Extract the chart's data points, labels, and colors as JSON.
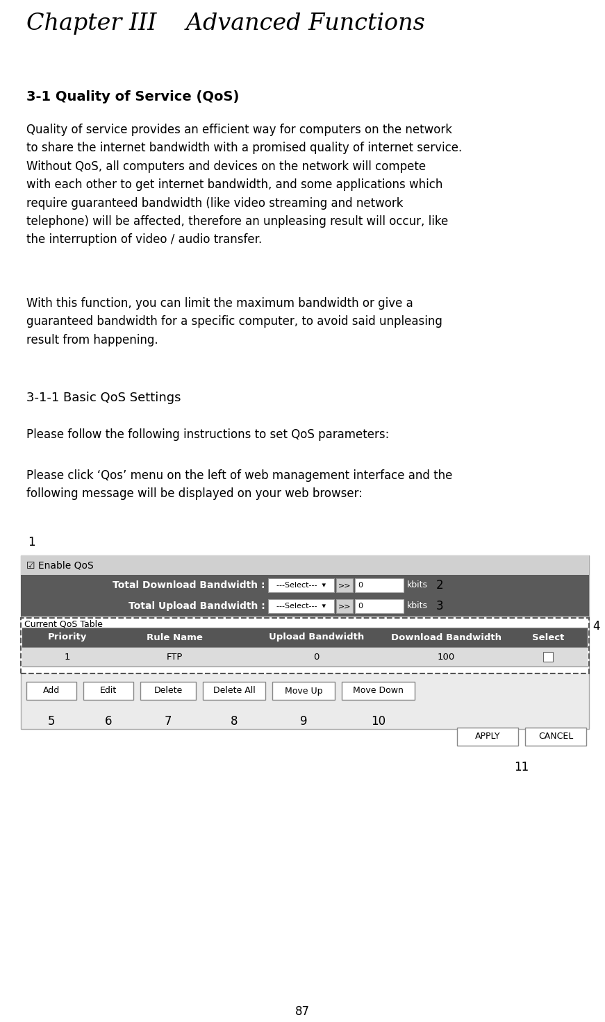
{
  "title": "Chapter III    Advanced Functions",
  "section1_title": "3-1 Quality of Service (QoS)",
  "para1": "Quality of service provides an efficient way for computers on the network\nto share the internet bandwidth with a promised quality of internet service.\nWithout QoS, all computers and devices on the network will compete\nwith each other to get internet bandwidth, and some applications which\nrequire guaranteed bandwidth (like video streaming and network\ntelephone) will be affected, therefore an unpleasing result will occur, like\nthe interruption of video / audio transfer.",
  "para2": "With this function, you can limit the maximum bandwidth or give a\nguaranteed bandwidth for a specific computer, to avoid said unpleasing\nresult from happening.",
  "section2_title": "3-1-1 Basic QoS Settings",
  "para3": "Please follow the following instructions to set QoS parameters:",
  "para4": "Please click ‘Qos’ menu on the left of web management interface and the\nfollowing message will be displayed on your web browser:",
  "page_number": "87",
  "bg_color": "#ffffff",
  "text_color": "#000000",
  "ui_bg": "#e8e8e8",
  "ui_dark_row": "#606060",
  "ui_enable_row": "#c8c8c8",
  "ui_header_row": "#555555",
  "ui_data_row": "#e0e0e0",
  "ui_border": "#888888",
  "ui_dotted_border": "#555555",
  "btn_color": "#f0f0f0",
  "white": "#ffffff",
  "label_numbers": [
    "1",
    "2",
    "3",
    "4",
    "5",
    "6",
    "7",
    "8",
    "9",
    "10",
    "11"
  ]
}
